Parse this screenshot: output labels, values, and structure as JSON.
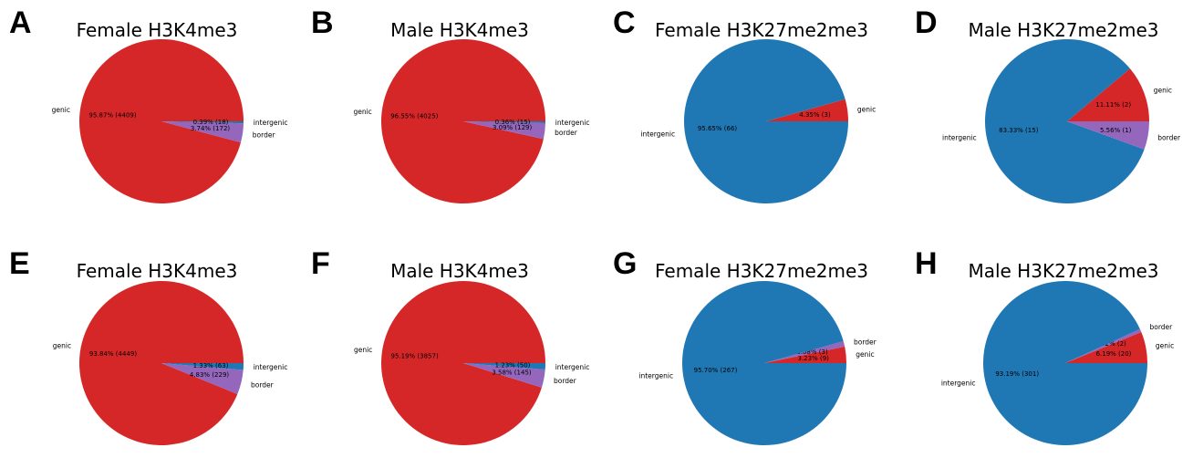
{
  "colors": {
    "genic": "#d62728",
    "intergenic": "#1f77b4",
    "border": "#9467bd"
  },
  "chart_data": [
    {
      "type": "pie",
      "panel": "A",
      "title": "Female H3K4me3",
      "slices": [
        {
          "label": "genic",
          "value": 4409,
          "pct_label": "95.87% (4409)"
        },
        {
          "label": "border",
          "value": 172,
          "pct_label": "3.74% (172)"
        },
        {
          "label": "intergenic",
          "value": 18,
          "pct_label": "0.39% (18)"
        }
      ]
    },
    {
      "type": "pie",
      "panel": "B",
      "title": "Male H3K4me3",
      "slices": [
        {
          "label": "genic",
          "value": 4025,
          "pct_label": "96.55% (4025)"
        },
        {
          "label": "border",
          "value": 129,
          "pct_label": "3.09% (129)"
        },
        {
          "label": "intergenic",
          "value": 15,
          "pct_label": "0.36% (15)"
        }
      ]
    },
    {
      "type": "pie",
      "panel": "C",
      "title": "Female H3K27me2me3",
      "slices": [
        {
          "label": "genic",
          "value": 3,
          "pct_label": "4.35% (3)"
        },
        {
          "label": "intergenic",
          "value": 66,
          "pct_label": "95.65% (66)"
        }
      ]
    },
    {
      "type": "pie",
      "panel": "D",
      "title": "Male H3K27me2me3",
      "slices": [
        {
          "label": "genic",
          "value": 2,
          "pct_label": "11.11% (2)"
        },
        {
          "label": "intergenic",
          "value": 15,
          "pct_label": "83.33% (15)"
        },
        {
          "label": "border",
          "value": 1,
          "pct_label": "5.56% (1)"
        }
      ]
    },
    {
      "type": "pie",
      "panel": "E",
      "title": "Female H3K4me3",
      "slices": [
        {
          "label": "genic",
          "value": 4449,
          "pct_label": "93.84% (4449)"
        },
        {
          "label": "border",
          "value": 229,
          "pct_label": "4.83% (229)"
        },
        {
          "label": "intergenic",
          "value": 63,
          "pct_label": "1.33% (63)"
        }
      ]
    },
    {
      "type": "pie",
      "panel": "F",
      "title": "Male H3K4me3",
      "slices": [
        {
          "label": "genic",
          "value": 3857,
          "pct_label": "95.19% (3857)"
        },
        {
          "label": "border",
          "value": 145,
          "pct_label": "3.58% (145)"
        },
        {
          "label": "intergenic",
          "value": 50,
          "pct_label": "1.23% (50)"
        }
      ]
    },
    {
      "type": "pie",
      "panel": "G",
      "title": "Female H3K27me2me3",
      "slices": [
        {
          "label": "genic",
          "value": 9,
          "pct_label": "3.23% (9)"
        },
        {
          "label": "border",
          "value": 3,
          "pct_label": "1.08% (3)"
        },
        {
          "label": "intergenic",
          "value": 267,
          "pct_label": "95.70% (267)"
        }
      ]
    },
    {
      "type": "pie",
      "panel": "H",
      "title": "Male H3K27me2me3",
      "slices": [
        {
          "label": "genic",
          "value": 20,
          "pct_label": "6.19% (20)"
        },
        {
          "label": "border",
          "value": 2,
          "pct_label": "0.62% (2)"
        },
        {
          "label": "intergenic",
          "value": 301,
          "pct_label": "93.19% (301)"
        }
      ]
    }
  ]
}
